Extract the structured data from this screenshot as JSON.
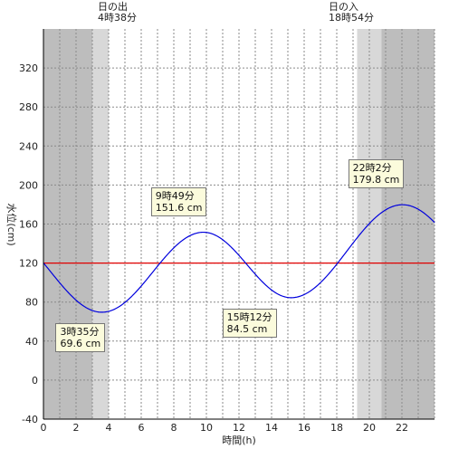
{
  "sun": {
    "sunrise_label": "日の出",
    "sunrise_time": "4時38分",
    "sunset_label": "日の入",
    "sunset_time": "18時54分"
  },
  "chart_data": {
    "type": "line",
    "xlabel": "時間(h)",
    "ylabel": "水位(cm)",
    "xlim": [
      0,
      24
    ],
    "ylim": [
      -40,
      360
    ],
    "x_ticks": [
      "0",
      "2",
      "4",
      "6",
      "8",
      "10",
      "12",
      "14",
      "16",
      "18",
      "20",
      "22"
    ],
    "y_ticks": [
      "-40",
      "0",
      "40",
      "80",
      "120",
      "160",
      "200",
      "240",
      "280",
      "320"
    ],
    "reference_line": {
      "value": 120,
      "color": "#e00000"
    },
    "line_color": "#0000dd",
    "shading": {
      "twilight_color": "#d8d8d8",
      "night_color": "#bdbdbd",
      "day_color": "#ffffff"
    },
    "series": [
      {
        "extrema": [
          {
            "time": "3時35分",
            "t": 3.583,
            "level": "69.6 cm",
            "value": 69.6
          },
          {
            "time": "9時49分",
            "t": 9.817,
            "level": "151.6 cm",
            "value": 151.6
          },
          {
            "time": "15時12分",
            "t": 15.2,
            "level": "84.5 cm",
            "value": 84.5
          },
          {
            "time": "22時2分",
            "t": 22.033,
            "level": "179.8 cm",
            "value": 179.8
          }
        ]
      }
    ],
    "twilight_hours": [
      [
        3.0,
        4.0
      ],
      [
        19.25,
        20.75
      ]
    ],
    "sunrise_hour": 4.633,
    "sunset_hour": 18.9
  }
}
